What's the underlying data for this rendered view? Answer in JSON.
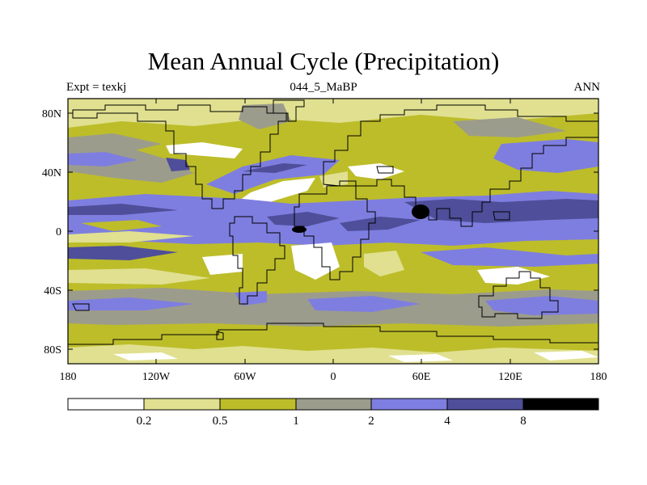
{
  "title": "Mean Annual Cycle (Precipitation)",
  "subtitle_left": "Expt = texkj",
  "subtitle_center": "044_5_MaBP",
  "subtitle_right": "ANN",
  "map": {
    "lat_labels": [
      "80N",
      "40N",
      "0",
      "40S",
      "80S"
    ],
    "lon_labels": [
      "180",
      "120W",
      "60W",
      "0",
      "60E",
      "120E",
      "180"
    ]
  },
  "legend": {
    "colors": [
      "#ffffff",
      "#e0e090",
      "#bdbd2a",
      "#9c9c8c",
      "#7e7ee0",
      "#4e4e9a",
      "#000000"
    ],
    "labels": [
      "0.2",
      "0.5",
      "1",
      "2",
      "4",
      "8"
    ]
  }
}
